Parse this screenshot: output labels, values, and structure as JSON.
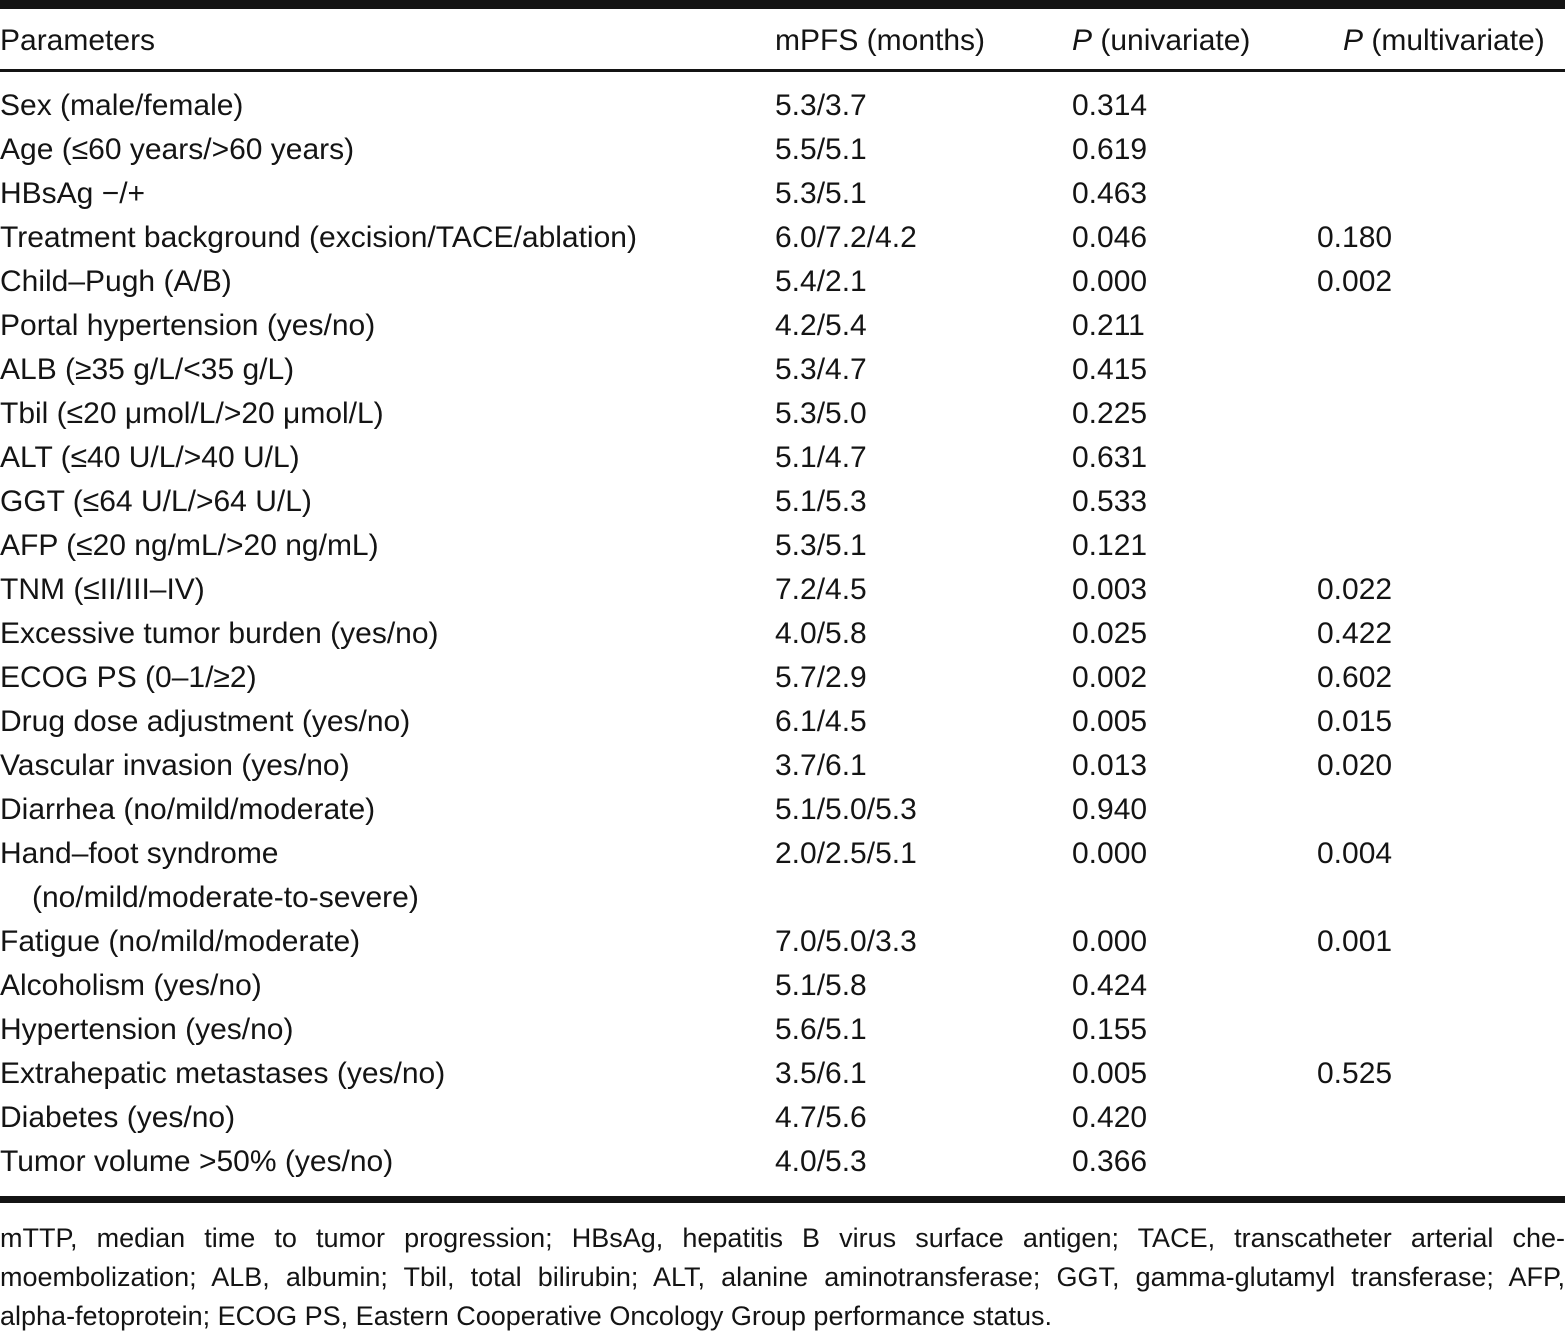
{
  "table": {
    "columns": [
      {
        "italic_prefix": "",
        "label": "Parameters"
      },
      {
        "italic_prefix": "",
        "label": "mPFS (months)"
      },
      {
        "italic_prefix": "P",
        "label": " (univariate)"
      },
      {
        "italic_prefix": "P",
        "label": " (multivariate)"
      }
    ],
    "rows": [
      {
        "parameter": "Sex (male/female)",
        "parameter_line2": "",
        "mpfs": "5.3/3.7",
        "p_univariate": "0.314",
        "p_multivariate": ""
      },
      {
        "parameter": "Age (≤60 years/>60 years)",
        "parameter_line2": "",
        "mpfs": "5.5/5.1",
        "p_univariate": "0.619",
        "p_multivariate": ""
      },
      {
        "parameter": "HBsAg −/+",
        "parameter_line2": "",
        "mpfs": "5.3/5.1",
        "p_univariate": "0.463",
        "p_multivariate": ""
      },
      {
        "parameter": "Treatment background (excision/TACE/ablation)",
        "parameter_line2": "",
        "mpfs": "6.0/7.2/4.2",
        "p_univariate": "0.046",
        "p_multivariate": "0.180"
      },
      {
        "parameter": "Child–Pugh (A/B)",
        "parameter_line2": "",
        "mpfs": "5.4/2.1",
        "p_univariate": "0.000",
        "p_multivariate": "0.002"
      },
      {
        "parameter": "Portal hypertension (yes/no)",
        "parameter_line2": "",
        "mpfs": "4.2/5.4",
        "p_univariate": "0.211",
        "p_multivariate": ""
      },
      {
        "parameter": "ALB (≥35 g/L/<35 g/L)",
        "parameter_line2": "",
        "mpfs": "5.3/4.7",
        "p_univariate": "0.415",
        "p_multivariate": ""
      },
      {
        "parameter": "Tbil (≤20 μmol/L/>20 μmol/L)",
        "parameter_line2": "",
        "mpfs": "5.3/5.0",
        "p_univariate": "0.225",
        "p_multivariate": ""
      },
      {
        "parameter": "ALT (≤40 U/L/>40 U/L)",
        "parameter_line2": "",
        "mpfs": "5.1/4.7",
        "p_univariate": "0.631",
        "p_multivariate": ""
      },
      {
        "parameter": "GGT (≤64 U/L/>64 U/L)",
        "parameter_line2": "",
        "mpfs": "5.1/5.3",
        "p_univariate": "0.533",
        "p_multivariate": ""
      },
      {
        "parameter": "AFP (≤20 ng/mL/>20 ng/mL)",
        "parameter_line2": "",
        "mpfs": "5.3/5.1",
        "p_univariate": "0.121",
        "p_multivariate": ""
      },
      {
        "parameter": "TNM (≤II/III–IV)",
        "parameter_line2": "",
        "mpfs": "7.2/4.5",
        "p_univariate": "0.003",
        "p_multivariate": "0.022"
      },
      {
        "parameter": "Excessive tumor burden (yes/no)",
        "parameter_line2": "",
        "mpfs": "4.0/5.8",
        "p_univariate": "0.025",
        "p_multivariate": "0.422"
      },
      {
        "parameter": "ECOG PS (0–1/≥2)",
        "parameter_line2": "",
        "mpfs": "5.7/2.9",
        "p_univariate": "0.002",
        "p_multivariate": "0.602"
      },
      {
        "parameter": "Drug dose adjustment (yes/no)",
        "parameter_line2": "",
        "mpfs": "6.1/4.5",
        "p_univariate": "0.005",
        "p_multivariate": "0.015"
      },
      {
        "parameter": "Vascular invasion (yes/no)",
        "parameter_line2": "",
        "mpfs": "3.7/6.1",
        "p_univariate": "0.013",
        "p_multivariate": "0.020"
      },
      {
        "parameter": "Diarrhea (no/mild/moderate)",
        "parameter_line2": "",
        "mpfs": "5.1/5.0/5.3",
        "p_univariate": "0.940",
        "p_multivariate": ""
      },
      {
        "parameter": "Hand–foot syndrome",
        "parameter_line2": "(no/mild/moderate-to-severe)",
        "mpfs": "2.0/2.5/5.1",
        "p_univariate": "0.000",
        "p_multivariate": "0.004"
      },
      {
        "parameter": "Fatigue (no/mild/moderate)",
        "parameter_line2": "",
        "mpfs": "7.0/5.0/3.3",
        "p_univariate": "0.000",
        "p_multivariate": "0.001"
      },
      {
        "parameter": "Alcoholism (yes/no)",
        "parameter_line2": "",
        "mpfs": "5.1/5.8",
        "p_univariate": "0.424",
        "p_multivariate": ""
      },
      {
        "parameter": "Hypertension (yes/no)",
        "parameter_line2": "",
        "mpfs": "5.6/5.1",
        "p_univariate": "0.155",
        "p_multivariate": ""
      },
      {
        "parameter": "Extrahepatic metastases (yes/no)",
        "parameter_line2": "",
        "mpfs": "3.5/6.1",
        "p_univariate": "0.005",
        "p_multivariate": "0.525"
      },
      {
        "parameter": "Diabetes (yes/no)",
        "parameter_line2": "",
        "mpfs": "4.7/5.6",
        "p_univariate": "0.420",
        "p_multivariate": ""
      },
      {
        "parameter": "Tumor volume >50% (yes/no)",
        "parameter_line2": "",
        "mpfs": "4.0/5.3",
        "p_univariate": "0.366",
        "p_multivariate": ""
      }
    ]
  },
  "footnote": {
    "lines": [
      "mTTP, median time to tumor progression; HBsAg, hepatitis B virus surface antigen; TACE, transcatheter arterial che-",
      "moembolization; ALB, albumin; Tbil, total bilirubin; ALT, alanine aminotransferase; GGT, gamma-glutamyl transferase; AFP,",
      "alpha-fetoprotein; ECOG PS, Eastern Cooperative Oncology Group performance status."
    ]
  },
  "colors": {
    "text": "#141414",
    "rule": "#141414",
    "background": "#ffffff"
  }
}
